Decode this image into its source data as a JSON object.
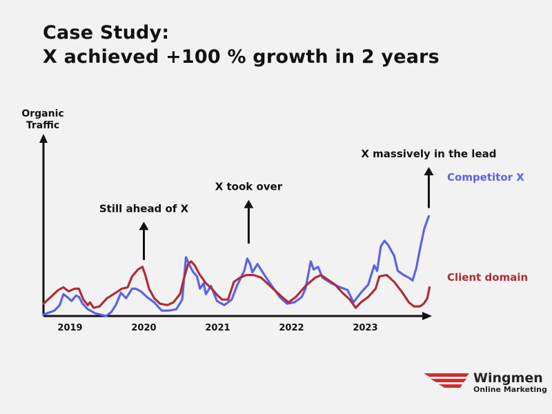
{
  "title": {
    "line1": "Case Study:",
    "line2": "X achieved +100 % growth in 2 years"
  },
  "chart_data": {
    "type": "line",
    "ylabel": [
      "Organic",
      "Traffic"
    ],
    "xlabel": "",
    "x_ticks": [
      "2019",
      "2020",
      "2021",
      "2022",
      "2023"
    ],
    "x_tick_values": [
      2019,
      2020,
      2021,
      2022,
      2023
    ],
    "xlim": [
      2018.6,
      2023.9
    ],
    "ylim": [
      0,
      100
    ],
    "grid": false,
    "legend": "right, inline labels at line ends",
    "series": [
      {
        "name": "Competitor X",
        "color": "#5b62e6",
        "points": [
          [
            2018.6,
            1
          ],
          [
            2018.65,
            2
          ],
          [
            2018.75,
            4
          ],
          [
            2018.82,
            8
          ],
          [
            2018.87,
            16
          ],
          [
            2018.92,
            14
          ],
          [
            2018.98,
            11
          ],
          [
            2019.04,
            15
          ],
          [
            2019.08,
            14
          ],
          [
            2019.13,
            9
          ],
          [
            2019.2,
            5
          ],
          [
            2019.3,
            2
          ],
          [
            2019.45,
            0
          ],
          [
            2019.52,
            3
          ],
          [
            2019.58,
            8
          ],
          [
            2019.65,
            17
          ],
          [
            2019.72,
            13
          ],
          [
            2019.8,
            20
          ],
          [
            2019.85,
            20
          ],
          [
            2019.92,
            18
          ],
          [
            2020.0,
            14
          ],
          [
            2020.1,
            10
          ],
          [
            2020.2,
            4
          ],
          [
            2020.3,
            4
          ],
          [
            2020.4,
            5
          ],
          [
            2020.48,
            12
          ],
          [
            2020.53,
            43
          ],
          [
            2020.58,
            37
          ],
          [
            2020.63,
            32
          ],
          [
            2020.68,
            29
          ],
          [
            2020.72,
            20
          ],
          [
            2020.77,
            24
          ],
          [
            2020.8,
            16
          ],
          [
            2020.87,
            22
          ],
          [
            2020.95,
            11
          ],
          [
            2021.05,
            8
          ],
          [
            2021.15,
            12
          ],
          [
            2021.22,
            22
          ],
          [
            2021.32,
            33
          ],
          [
            2021.36,
            42
          ],
          [
            2021.4,
            38
          ],
          [
            2021.43,
            32
          ],
          [
            2021.5,
            38
          ],
          [
            2021.57,
            32
          ],
          [
            2021.63,
            27
          ],
          [
            2021.72,
            20
          ],
          [
            2021.8,
            14
          ],
          [
            2021.9,
            9
          ],
          [
            2022.0,
            10
          ],
          [
            2022.1,
            14
          ],
          [
            2022.15,
            20
          ],
          [
            2022.22,
            40
          ],
          [
            2022.26,
            34
          ],
          [
            2022.32,
            36
          ],
          [
            2022.38,
            28
          ],
          [
            2022.5,
            24
          ],
          [
            2022.62,
            21
          ],
          [
            2022.72,
            19
          ],
          [
            2022.8,
            10
          ],
          [
            2022.9,
            17
          ],
          [
            2023.0,
            23
          ],
          [
            2023.08,
            37
          ],
          [
            2023.12,
            33
          ],
          [
            2023.17,
            51
          ],
          [
            2023.22,
            55
          ],
          [
            2023.27,
            52
          ],
          [
            2023.35,
            44
          ],
          [
            2023.4,
            33
          ],
          [
            2023.48,
            30
          ],
          [
            2023.55,
            28
          ],
          [
            2023.6,
            26
          ],
          [
            2023.65,
            35
          ],
          [
            2023.7,
            49
          ],
          [
            2023.76,
            64
          ],
          [
            2023.82,
            73
          ]
        ]
      },
      {
        "name": "Client domain",
        "color": "#b02b37",
        "points": [
          [
            2018.6,
            9
          ],
          [
            2018.7,
            14
          ],
          [
            2018.8,
            19
          ],
          [
            2018.87,
            21
          ],
          [
            2018.94,
            18
          ],
          [
            2019.02,
            20
          ],
          [
            2019.08,
            20
          ],
          [
            2019.14,
            12
          ],
          [
            2019.2,
            8
          ],
          [
            2019.23,
            10
          ],
          [
            2019.28,
            6
          ],
          [
            2019.36,
            7
          ],
          [
            2019.46,
            13
          ],
          [
            2019.58,
            17
          ],
          [
            2019.66,
            20
          ],
          [
            2019.74,
            21
          ],
          [
            2019.8,
            29
          ],
          [
            2019.88,
            34
          ],
          [
            2019.94,
            36
          ],
          [
            2019.98,
            30
          ],
          [
            2020.03,
            20
          ],
          [
            2020.1,
            13
          ],
          [
            2020.18,
            9
          ],
          [
            2020.28,
            8
          ],
          [
            2020.36,
            10
          ],
          [
            2020.45,
            16
          ],
          [
            2020.5,
            27
          ],
          [
            2020.56,
            38
          ],
          [
            2020.6,
            40
          ],
          [
            2020.65,
            37
          ],
          [
            2020.72,
            30
          ],
          [
            2020.8,
            24
          ],
          [
            2020.88,
            20
          ],
          [
            2020.96,
            15
          ],
          [
            2021.02,
            12
          ],
          [
            2021.1,
            12
          ],
          [
            2021.18,
            25
          ],
          [
            2021.26,
            28
          ],
          [
            2021.35,
            30
          ],
          [
            2021.45,
            30
          ],
          [
            2021.55,
            28
          ],
          [
            2021.65,
            23
          ],
          [
            2021.75,
            18
          ],
          [
            2021.85,
            13
          ],
          [
            2021.92,
            10
          ],
          [
            2022.02,
            14
          ],
          [
            2022.15,
            22
          ],
          [
            2022.28,
            28
          ],
          [
            2022.36,
            30
          ],
          [
            2022.44,
            27
          ],
          [
            2022.55,
            23
          ],
          [
            2022.65,
            17
          ],
          [
            2022.75,
            12
          ],
          [
            2022.83,
            6
          ],
          [
            2022.9,
            10
          ],
          [
            2023.0,
            14
          ],
          [
            2023.1,
            20
          ],
          [
            2023.15,
            29
          ],
          [
            2023.25,
            30
          ],
          [
            2023.35,
            25
          ],
          [
            2023.45,
            18
          ],
          [
            2023.55,
            10
          ],
          [
            2023.62,
            7
          ],
          [
            2023.7,
            7
          ],
          [
            2023.75,
            9
          ],
          [
            2023.8,
            13
          ],
          [
            2023.83,
            21
          ]
        ]
      }
    ],
    "annotations": [
      {
        "text": "Still ahead of X",
        "x": 2019.96,
        "y_from": 41,
        "y_to": 69
      },
      {
        "text": "X took over",
        "x": 2021.38,
        "y_from": 53,
        "y_to": 85
      },
      {
        "text": "X massively in the lead",
        "x": 2023.82,
        "y_from": 79,
        "y_to": 109
      }
    ]
  },
  "logo": {
    "name": "Wingmen",
    "sub": "Online Marketing",
    "color": "#d62a2a"
  }
}
